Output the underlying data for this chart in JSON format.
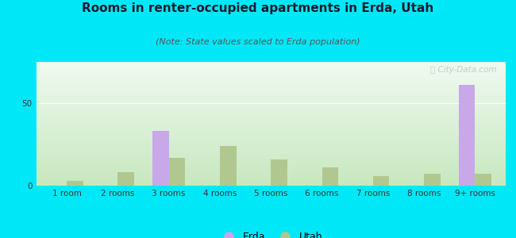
{
  "title": "Rooms in renter-occupied apartments in Erda, Utah",
  "subtitle": "(Note: State values scaled to Erda population)",
  "categories": [
    "1 room",
    "2 rooms",
    "3 rooms",
    "4 rooms",
    "5 rooms",
    "6 rooms",
    "7 rooms",
    "8 rooms",
    "9+ rooms"
  ],
  "erda_values": [
    0,
    0,
    33,
    0,
    0,
    0,
    0,
    0,
    61
  ],
  "utah_values": [
    3,
    8,
    17,
    24,
    16,
    11,
    6,
    7,
    7
  ],
  "erda_color": "#c8a8e8",
  "utah_color": "#b0c890",
  "background_outer": "#00e8f8",
  "ylim": [
    0,
    75
  ],
  "yticks": [
    0,
    50
  ],
  "bar_width": 0.32,
  "title_fontsize": 11,
  "subtitle_fontsize": 8,
  "tick_fontsize": 7.5,
  "legend_fontsize": 9
}
